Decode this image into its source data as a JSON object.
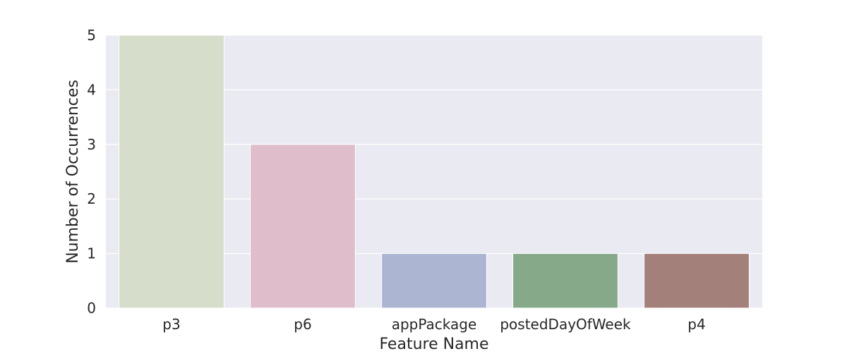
{
  "chart_data": {
    "type": "bar",
    "categories": [
      "p3",
      "p6",
      "appPackage",
      "postedDayOfWeek",
      "p4"
    ],
    "values": [
      5,
      3,
      1,
      1,
      1
    ],
    "bar_colors": [
      "#d6ddca",
      "#dfbdcb",
      "#acb5d2",
      "#86a98a",
      "#a3807a"
    ],
    "title": "",
    "xlabel": "Feature Name",
    "ylabel": "Number of Occurrences",
    "ylim": [
      0,
      5
    ],
    "yticks": [
      0,
      1,
      2,
      3,
      4,
      5
    ],
    "grid": true,
    "background_color": "#eaeaf2",
    "grid_color": "#ffffff"
  }
}
